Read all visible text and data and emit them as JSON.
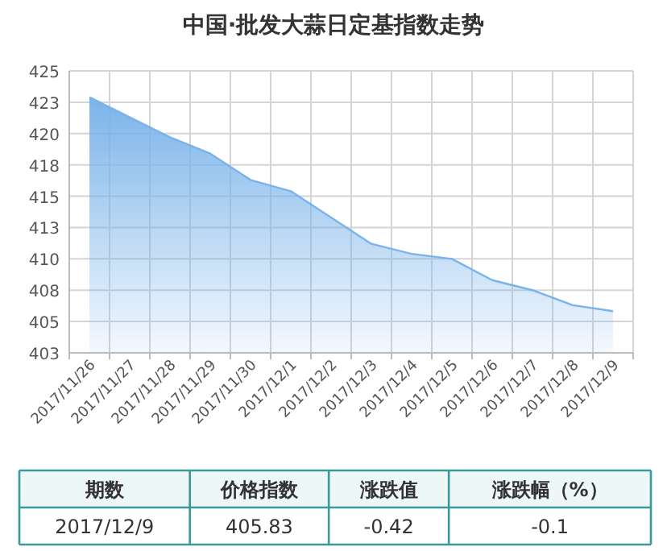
{
  "chart_data": {
    "type": "area",
    "title": "中国·批发大蒜日定基指数走势",
    "categories": [
      "2017/11/26",
      "2017/11/27",
      "2017/11/28",
      "2017/11/29",
      "2017/11/30",
      "2017/12/1",
      "2017/12/2",
      "2017/12/3",
      "2017/12/4",
      "2017/12/5",
      "2017/12/6",
      "2017/12/7",
      "2017/12/8",
      "2017/12/9"
    ],
    "series": [
      {
        "color": "#7ab3ea",
        "values": [
          422.9,
          421.3,
          419.7,
          418.4,
          416.3,
          415.4,
          413.3,
          411.2,
          410.4,
          410.0,
          408.3,
          407.5,
          406.3,
          405.83
        ]
      }
    ],
    "ylim": [
      402.5,
      425
    ],
    "yticks": [
      {
        "value": 402.5,
        "label": "403"
      },
      405,
      {
        "value": 407.5,
        "label": "408"
      },
      410,
      {
        "value": 412.5,
        "label": "413"
      },
      415,
      {
        "value": 417.5,
        "label": "418"
      },
      420,
      {
        "value": 422.5,
        "label": "423"
      },
      425
    ],
    "grid": true,
    "marker": "none",
    "annotations": [
      "期数",
      "价格指数",
      "涨跌值",
      "涨跌幅（%）",
      "2017/12/9",
      "405.83",
      "-0.42",
      "-0.1"
    ]
  }
}
